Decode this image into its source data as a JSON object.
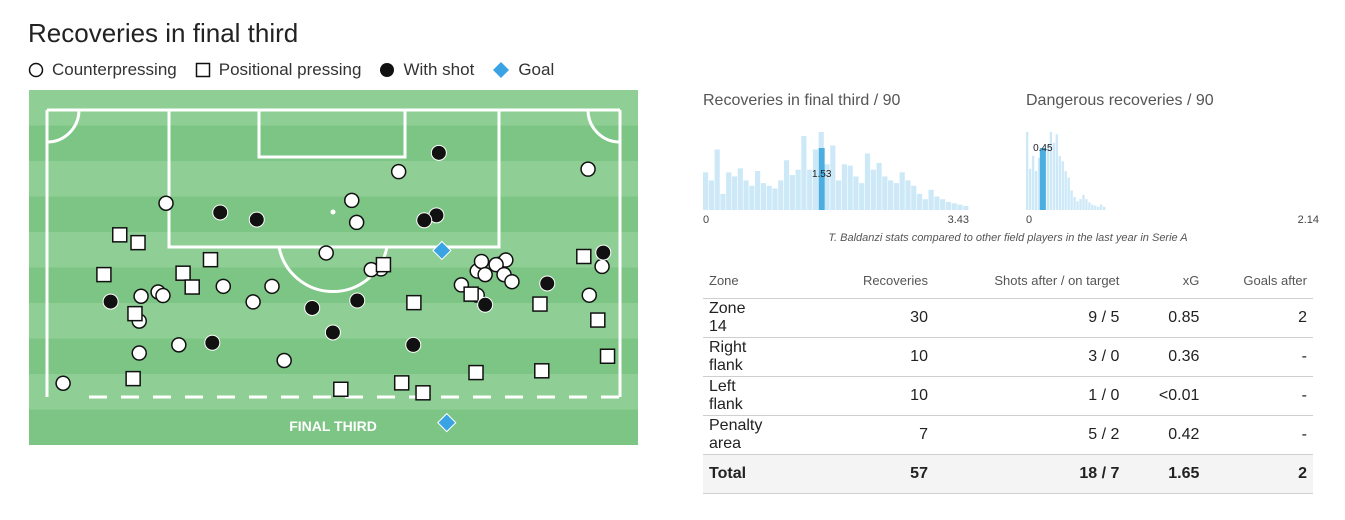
{
  "title": "Recoveries in final third",
  "legend": [
    {
      "shape": "circle-open",
      "label": "Counterpressing"
    },
    {
      "shape": "square-open",
      "label": "Positional pressing"
    },
    {
      "shape": "circle-filled",
      "label": "With shot"
    },
    {
      "shape": "diamond-blue",
      "label": "Goal"
    }
  ],
  "pitch": {
    "zone_label": "FINAL THIRD",
    "colors": {
      "grass_light": "#8fcf95",
      "grass_dark": "#7cc584",
      "goal_marker": "#3aa3e3"
    }
  },
  "histograms": [
    {
      "title": "Recoveries in final third / 90",
      "min_label": "0",
      "max_label": "3.43",
      "player_value": 1.53,
      "player_label": "1.53"
    },
    {
      "title": "Dangerous recoveries / 90",
      "min_label": "0",
      "max_label": "2.14",
      "player_value": 0.45,
      "player_label": "0.45"
    }
  ],
  "caption": "T. Baldanzi stats compared to other field players in the last year in Serie A",
  "table": {
    "headers": [
      "Zone",
      "Recoveries",
      "Shots after / on target",
      "xG",
      "Goals after"
    ],
    "rows": [
      [
        "Zone 14",
        "30",
        "9 / 5",
        "0.85",
        "2"
      ],
      [
        "Right flank",
        "10",
        "3 / 0",
        "0.36",
        "-"
      ],
      [
        "Left flank",
        "10",
        "1 / 0",
        "<0.01",
        "-"
      ],
      [
        "Penalty area",
        "7",
        "5 / 2",
        "0.42",
        "-"
      ]
    ],
    "total": [
      "Total",
      "57",
      "18 / 7",
      "1.65",
      "2"
    ]
  },
  "chart_data": [
    {
      "type": "scatter",
      "title": "",
      "x_range": [
        0,
        100
      ],
      "y_range": [
        0,
        100
      ],
      "series": [
        {
          "name": "Counterpressing",
          "points": [
            [
              5.6,
              82.6
            ],
            [
              22.5,
              31.9
            ],
            [
              18.1,
              74.1
            ],
            [
              18.1,
              65.1
            ],
            [
              18.4,
              58.1
            ],
            [
              21.2,
              56.9
            ],
            [
              22.0,
              57.9
            ],
            [
              31.9,
              55.3
            ],
            [
              36.8,
              59.7
            ],
            [
              39.9,
              55.3
            ],
            [
              48.8,
              45.9
            ],
            [
              57.8,
              50.4
            ],
            [
              56.2,
              50.6
            ],
            [
              53.0,
              31.1
            ],
            [
              60.7,
              23.0
            ],
            [
              53.8,
              37.3
            ],
            [
              73.6,
              51.0
            ],
            [
              74.3,
              48.3
            ],
            [
              77.2,
              49.1
            ],
            [
              73.6,
              57.8
            ],
            [
              78.3,
              47.9
            ],
            [
              71.0,
              54.9
            ],
            [
              74.9,
              52.0
            ],
            [
              76.7,
              49.2
            ],
            [
              78.0,
              52.0
            ],
            [
              79.3,
              54.0
            ],
            [
              91.8,
              22.3
            ],
            [
              94.1,
              49.7
            ],
            [
              92.0,
              57.8
            ],
            [
              41.9,
              76.2
            ],
            [
              24.6,
              71.8
            ]
          ]
        },
        {
          "name": "Positional pressing",
          "points": [
            [
              14.9,
              40.8
            ],
            [
              17.9,
              43.0
            ],
            [
              17.4,
              63.0
            ],
            [
              29.8,
              47.8
            ],
            [
              25.3,
              51.6
            ],
            [
              58.2,
              49.2
            ],
            [
              63.2,
              59.9
            ],
            [
              61.2,
              82.5
            ],
            [
              51.2,
              84.3
            ],
            [
              64.7,
              85.3
            ],
            [
              73.4,
              79.6
            ],
            [
              84.2,
              79.1
            ],
            [
              72.6,
              57.5
            ],
            [
              83.9,
              60.3
            ],
            [
              93.4,
              64.8
            ],
            [
              95.0,
              75.0
            ],
            [
              91.1,
              46.9
            ],
            [
              17.1,
              81.3
            ],
            [
              26.8,
              55.5
            ],
            [
              12.3,
              52.0
            ]
          ]
        },
        {
          "name": "With shot",
          "points": [
            [
              31.4,
              34.5
            ],
            [
              37.4,
              36.5
            ],
            [
              13.4,
              59.6
            ],
            [
              30.1,
              71.2
            ],
            [
              67.3,
              17.7
            ],
            [
              66.9,
              35.3
            ],
            [
              64.9,
              36.7
            ],
            [
              46.5,
              61.4
            ],
            [
              49.9,
              68.3
            ],
            [
              63.1,
              71.8
            ],
            [
              74.9,
              60.5
            ],
            [
              94.3,
              45.8
            ],
            [
              85.1,
              54.5
            ],
            [
              53.9,
              59.3
            ]
          ]
        },
        {
          "name": "Goal",
          "points": [
            [
              67.8,
              45.2
            ],
            [
              68.6,
              93.7
            ]
          ]
        }
      ]
    },
    {
      "type": "bar",
      "title": "Recoveries in final third / 90",
      "xlim": [
        0,
        3.43
      ],
      "highlight_value": 1.53,
      "values": [
        28,
        22,
        45,
        12,
        28,
        25,
        31,
        22,
        18,
        29,
        20,
        18,
        16,
        22,
        37,
        26,
        30,
        55,
        30,
        45,
        58,
        34,
        48,
        22,
        34,
        33,
        25,
        20,
        42,
        30,
        35,
        25,
        22,
        20,
        28,
        22,
        18,
        12,
        8,
        15,
        10,
        8,
        6,
        5,
        4,
        3
      ]
    },
    {
      "type": "bar",
      "title": "Dangerous recoveries / 90",
      "xlim": [
        0,
        2.14
      ],
      "highlight_value": 0.45,
      "values": [
        72,
        38,
        50,
        36,
        48,
        42,
        55,
        60,
        72,
        62,
        70,
        50,
        45,
        36,
        30,
        18,
        12,
        8,
        10,
        14,
        10,
        7,
        5,
        4,
        3,
        5,
        3
      ]
    }
  ]
}
